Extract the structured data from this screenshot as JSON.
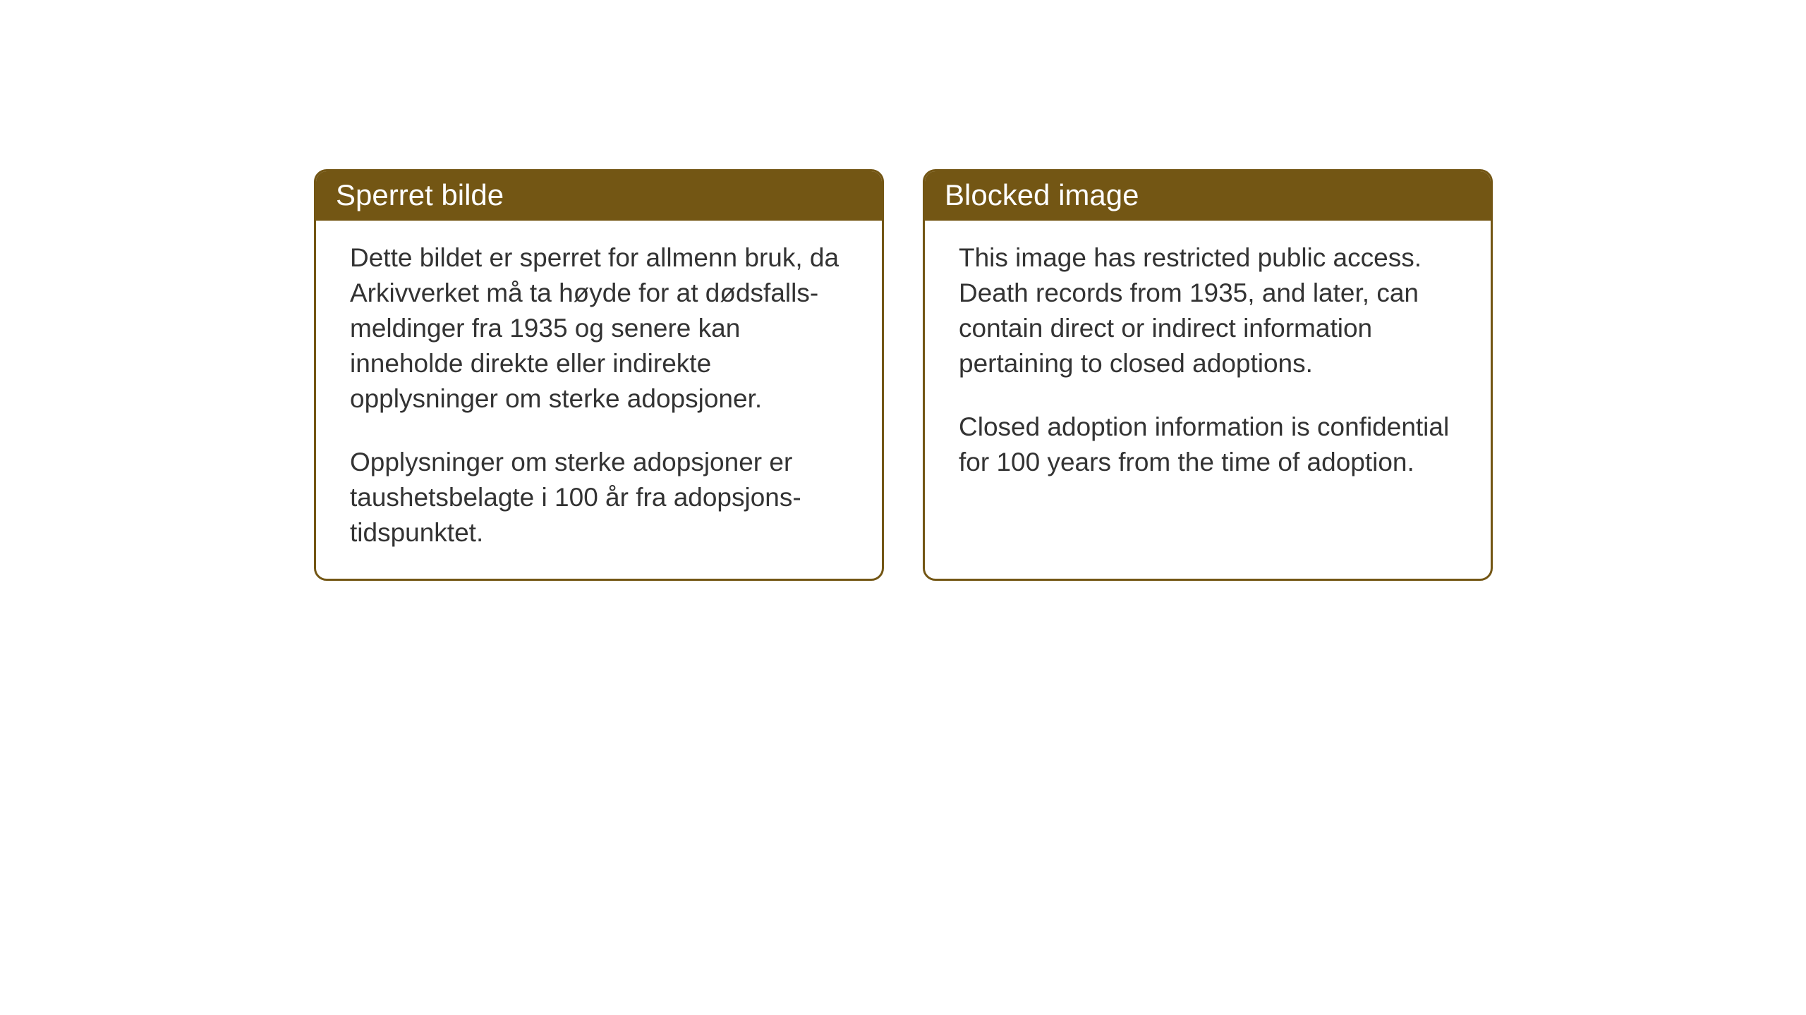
{
  "boxes": {
    "norwegian": {
      "title": "Sperret bilde",
      "paragraph1": "Dette bildet er sperret for allmenn bruk, da Arkivverket må ta høyde for at dødsfalls-meldinger fra 1935 og senere kan inneholde direkte eller indirekte opplysninger om sterke adopsjoner.",
      "paragraph2": "Opplysninger om sterke adopsjoner er taushetsbelagte i 100 år fra adopsjons-tidspunktet."
    },
    "english": {
      "title": "Blocked image",
      "paragraph1": "This image has restricted public access. Death records from 1935, and later, can contain direct or indirect information pertaining to closed adoptions.",
      "paragraph2": "Closed adoption information is confidential for 100 years from the time of adoption."
    }
  },
  "styling": {
    "header_bg_color": "#735614",
    "header_text_color": "#ffffff",
    "border_color": "#735614",
    "body_bg_color": "#ffffff",
    "body_text_color": "#333333",
    "page_bg_color": "#ffffff",
    "header_fontsize": 42,
    "body_fontsize": 37,
    "border_width": 3,
    "border_radius": 18
  }
}
